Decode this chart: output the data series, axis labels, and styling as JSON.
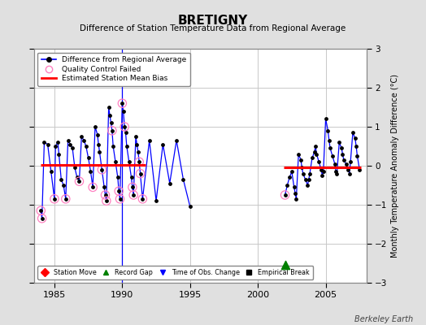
{
  "title": "BRETIGNY",
  "subtitle": "Difference of Station Temperature Data from Regional Average",
  "ylabel_right": "Monthly Temperature Anomaly Difference (°C)",
  "credit": "Berkeley Earth",
  "xlim": [
    1983.5,
    2008.0
  ],
  "ylim": [
    -3,
    3
  ],
  "yticks": [
    -3,
    -2,
    -1,
    0,
    1,
    2,
    3
  ],
  "xticks": [
    1985,
    1990,
    1995,
    2000,
    2005
  ],
  "bg_color": "#e0e0e0",
  "plot_bg_color": "#ffffff",
  "grid_color": "#c8c8c8",
  "segment1_bias": 0.03,
  "segment1_start": 1984.0,
  "segment1_end": 1991.7,
  "segment2_bias": -0.05,
  "segment2_start": 2001.9,
  "segment2_end": 2007.6,
  "time_of_obs_change_x": 1989.95,
  "record_gap_x": 2002.0,
  "record_gap_y": -2.55,
  "data_segment1": [
    [
      1984.0,
      -1.15
    ],
    [
      1984.08,
      -1.35
    ],
    [
      1984.25,
      0.6
    ],
    [
      1984.5,
      0.55
    ],
    [
      1984.75,
      -0.15
    ],
    [
      1985.0,
      -0.85
    ],
    [
      1985.08,
      0.5
    ],
    [
      1985.25,
      0.6
    ],
    [
      1985.33,
      0.3
    ],
    [
      1985.5,
      -0.35
    ],
    [
      1985.67,
      -0.5
    ],
    [
      1985.83,
      -0.85
    ],
    [
      1986.0,
      0.65
    ],
    [
      1986.17,
      0.55
    ],
    [
      1986.33,
      0.45
    ],
    [
      1986.5,
      -0.05
    ],
    [
      1986.67,
      -0.3
    ],
    [
      1986.83,
      -0.4
    ],
    [
      1987.0,
      0.75
    ],
    [
      1987.17,
      0.65
    ],
    [
      1987.33,
      0.5
    ],
    [
      1987.5,
      0.2
    ],
    [
      1987.67,
      -0.15
    ],
    [
      1987.83,
      -0.55
    ],
    [
      1988.0,
      1.0
    ],
    [
      1988.17,
      0.8
    ],
    [
      1988.25,
      0.55
    ],
    [
      1988.33,
      0.35
    ],
    [
      1988.5,
      -0.1
    ],
    [
      1988.67,
      -0.55
    ],
    [
      1988.75,
      -0.75
    ],
    [
      1988.83,
      -0.9
    ],
    [
      1989.0,
      1.5
    ],
    [
      1989.08,
      1.3
    ],
    [
      1989.17,
      1.1
    ],
    [
      1989.25,
      0.9
    ],
    [
      1989.33,
      0.5
    ],
    [
      1989.5,
      0.1
    ],
    [
      1989.67,
      -0.3
    ],
    [
      1989.75,
      -0.65
    ],
    [
      1989.83,
      -0.85
    ],
    [
      1990.0,
      1.6
    ],
    [
      1990.08,
      1.4
    ],
    [
      1990.17,
      1.0
    ],
    [
      1990.25,
      0.85
    ],
    [
      1990.33,
      0.5
    ],
    [
      1990.5,
      0.1
    ],
    [
      1990.67,
      -0.3
    ],
    [
      1990.75,
      -0.55
    ],
    [
      1990.83,
      -0.75
    ],
    [
      1991.0,
      0.75
    ],
    [
      1991.08,
      0.55
    ],
    [
      1991.17,
      0.35
    ],
    [
      1991.25,
      0.1
    ],
    [
      1991.33,
      -0.2
    ],
    [
      1991.5,
      -0.85
    ],
    [
      1992.0,
      0.65
    ],
    [
      1992.5,
      -0.9
    ],
    [
      1993.0,
      0.55
    ],
    [
      1993.5,
      -0.45
    ],
    [
      1994.0,
      0.65
    ],
    [
      1994.5,
      -0.35
    ],
    [
      1995.0,
      -1.05
    ]
  ],
  "qc_failed_segment1": [
    [
      1984.0,
      -1.15
    ],
    [
      1984.08,
      -1.35
    ],
    [
      1985.0,
      -0.85
    ],
    [
      1985.83,
      -0.85
    ],
    [
      1986.83,
      -0.4
    ],
    [
      1987.83,
      -0.55
    ],
    [
      1988.5,
      -0.1
    ],
    [
      1988.75,
      -0.75
    ],
    [
      1988.83,
      -0.9
    ],
    [
      1989.25,
      0.9
    ],
    [
      1989.75,
      -0.65
    ],
    [
      1989.83,
      -0.85
    ],
    [
      1990.0,
      1.6
    ],
    [
      1990.17,
      1.0
    ],
    [
      1990.75,
      -0.55
    ],
    [
      1990.83,
      -0.75
    ],
    [
      1991.25,
      0.1
    ],
    [
      1991.33,
      -0.2
    ],
    [
      1991.5,
      -0.85
    ]
  ],
  "data_segment2": [
    [
      2002.0,
      -0.75
    ],
    [
      2002.17,
      -0.5
    ],
    [
      2002.33,
      -0.3
    ],
    [
      2002.5,
      -0.15
    ],
    [
      2002.67,
      -0.55
    ],
    [
      2002.75,
      -0.7
    ],
    [
      2002.83,
      -0.85
    ],
    [
      2003.0,
      0.3
    ],
    [
      2003.17,
      0.15
    ],
    [
      2003.25,
      -0.05
    ],
    [
      2003.33,
      -0.2
    ],
    [
      2003.5,
      -0.35
    ],
    [
      2003.67,
      -0.5
    ],
    [
      2003.75,
      -0.35
    ],
    [
      2003.83,
      -0.2
    ],
    [
      2004.0,
      0.2
    ],
    [
      2004.17,
      0.35
    ],
    [
      2004.25,
      0.5
    ],
    [
      2004.33,
      0.3
    ],
    [
      2004.5,
      0.1
    ],
    [
      2004.67,
      -0.1
    ],
    [
      2004.75,
      -0.25
    ],
    [
      2004.83,
      -0.15
    ],
    [
      2005.0,
      1.2
    ],
    [
      2005.17,
      0.9
    ],
    [
      2005.25,
      0.65
    ],
    [
      2005.33,
      0.45
    ],
    [
      2005.5,
      0.25
    ],
    [
      2005.67,
      0.05
    ],
    [
      2005.75,
      -0.15
    ],
    [
      2005.83,
      -0.2
    ],
    [
      2006.0,
      0.6
    ],
    [
      2006.17,
      0.45
    ],
    [
      2006.25,
      0.3
    ],
    [
      2006.33,
      0.15
    ],
    [
      2006.5,
      0.05
    ],
    [
      2006.67,
      -0.1
    ],
    [
      2006.75,
      -0.2
    ],
    [
      2006.83,
      0.1
    ],
    [
      2007.0,
      0.85
    ],
    [
      2007.17,
      0.7
    ],
    [
      2007.25,
      0.5
    ],
    [
      2007.33,
      0.25
    ],
    [
      2007.5,
      -0.1
    ]
  ],
  "qc_failed_segment2": [
    [
      2002.0,
      -0.75
    ]
  ]
}
